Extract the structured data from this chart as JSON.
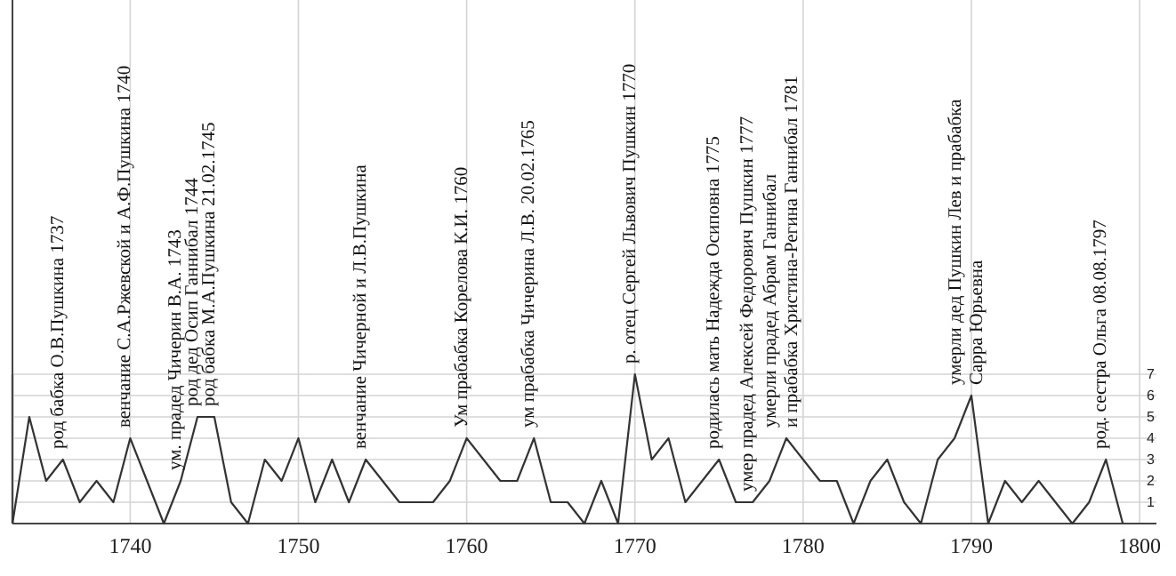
{
  "chart_data": {
    "type": "line",
    "x": [
      1733,
      1734,
      1735,
      1736,
      1737,
      1738,
      1739,
      1740,
      1741,
      1742,
      1743,
      1744,
      1745,
      1746,
      1747,
      1748,
      1749,
      1750,
      1751,
      1752,
      1753,
      1754,
      1755,
      1756,
      1757,
      1758,
      1759,
      1760,
      1761,
      1762,
      1763,
      1764,
      1765,
      1766,
      1767,
      1768,
      1769,
      1770,
      1771,
      1772,
      1773,
      1774,
      1775,
      1776,
      1777,
      1778,
      1779,
      1780,
      1781,
      1782,
      1783,
      1784,
      1785,
      1786,
      1787,
      1788,
      1789,
      1790,
      1791,
      1792,
      1793,
      1794,
      1795,
      1796,
      1797,
      1798,
      1799
    ],
    "series": [
      {
        "color": "#333333",
        "values": [
          0,
          5,
          2,
          3,
          1,
          2,
          1,
          4,
          2,
          0,
          2,
          5,
          5,
          1,
          0,
          3,
          2,
          4,
          1,
          3,
          1,
          3,
          2,
          1,
          1,
          1,
          2,
          4,
          3,
          2,
          2,
          4,
          1,
          1,
          0,
          2,
          0,
          7,
          3,
          4,
          1,
          2,
          3,
          1,
          1,
          2,
          4,
          3,
          2,
          2,
          0,
          2,
          3,
          1,
          0,
          3,
          4,
          6,
          0,
          2,
          1,
          2,
          1,
          0,
          1,
          3,
          0
        ]
      }
    ],
    "xlim": [
      1733,
      1801
    ],
    "xticks": [
      1740,
      1750,
      1760,
      1770,
      1780,
      1790,
      1800
    ],
    "ylim": [
      0,
      7
    ],
    "yticks": [
      1,
      2,
      3,
      4,
      5,
      6,
      7
    ],
    "grid": true,
    "marker": "none",
    "line_style": "solid",
    "annotations": [
      {
        "text": "род бабка О.В.Пушкина 1737",
        "x": 1736,
        "y": 3
      },
      {
        "text": "венчание С.А.Ржевской и А.Ф.Пушкина 1740",
        "x": 1740,
        "y": 4
      },
      {
        "text": "ум. прадед Чичерин В.А. 1743",
        "x": 1743,
        "y": 2
      },
      {
        "text": "род дед Осип Ганнибал 1744",
        "x": 1744,
        "y": 5
      },
      {
        "text": "род бабка М.А.Пушкина 21.02.1745",
        "x": 1745,
        "y": 5
      },
      {
        "text": "венчание Чичерной и Л.В.Пушкина",
        "x": 1754,
        "y": 3
      },
      {
        "text": "Ум прабабка Корелова К.И. 1760",
        "x": 1760,
        "y": 4
      },
      {
        "text": "ум прабабка Чичерина Л.В. 20.02.1765",
        "x": 1764,
        "y": 4
      },
      {
        "text": "р. отец Сергей Львович Пушкин 1770",
        "x": 1770,
        "y": 7
      },
      {
        "text": "родилась мать Надежда Осиповна 1775",
        "x": 1775,
        "y": 3
      },
      {
        "text": "умер прадед Алексей Федорович Пушкин 1777",
        "x": 1777,
        "y": 1
      },
      {
        "text": "умерли прадед Абрам Ганнибал\nи прабабка Христина-Регина Ганнибал 1781",
        "x": 1779,
        "y": 4
      },
      {
        "text": "умерли дед Пушкин Лев и прабабка\nСарра Юрьевна",
        "x": 1790,
        "y": 6
      },
      {
        "text": "род. сестра Ольга 08.08.1797",
        "x": 1798,
        "y": 3
      }
    ]
  }
}
